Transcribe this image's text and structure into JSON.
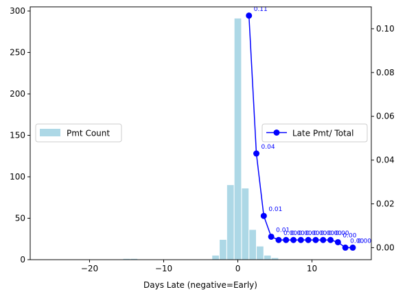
{
  "chart_data": {
    "type": "bar+line",
    "xlabel": "Days Late (negative=Early)",
    "xlim": [
      -28,
      18
    ],
    "x_ticks": [
      -20,
      -10,
      0,
      10
    ],
    "left_axis": {
      "ylim": [
        0,
        305
      ],
      "ticks": [
        0,
        50,
        100,
        150,
        200,
        250,
        300
      ]
    },
    "right_axis": {
      "ylim": [
        -0.0055,
        0.11
      ],
      "ticks": [
        0.0,
        0.02,
        0.04,
        0.06,
        0.08,
        0.1
      ]
    },
    "bar_series": {
      "name": "Pmt Count",
      "color": "#add8e6",
      "bar_width": 0.9,
      "x": [
        -15,
        -14,
        -3,
        -2,
        -1,
        0,
        1,
        2,
        3,
        4,
        5
      ],
      "values": [
        1,
        1,
        5,
        24,
        90,
        291,
        86,
        36,
        16,
        5,
        2
      ]
    },
    "line_series": {
      "name": "Late Pmt/ Total",
      "color": "#0000ff",
      "x": [
        1.5,
        2.5,
        3.5,
        4.5,
        5.5,
        6.5,
        7.5,
        8.5,
        9.5,
        10.5,
        11.5,
        12.5,
        13.5,
        14.5,
        15.5
      ],
      "values": [
        0.106,
        0.043,
        0.0145,
        0.005,
        0.0035,
        0.0035,
        0.0035,
        0.0035,
        0.0035,
        0.0035,
        0.0035,
        0.0035,
        0.0025,
        0.0,
        0.0
      ],
      "labels": [
        "0.11",
        "0.04",
        "0.01",
        "0.01",
        "0.00",
        "0.00",
        "0.00",
        "0.00",
        "0.00",
        "0.00",
        "0.00",
        "0.00",
        "0.00",
        "0.00",
        "0.00"
      ]
    },
    "legend_left": {
      "placement": "center-left",
      "label": "Pmt Count"
    },
    "legend_right": {
      "placement": "center-right",
      "label": "Late Pmt/ Total"
    },
    "grid": false
  }
}
